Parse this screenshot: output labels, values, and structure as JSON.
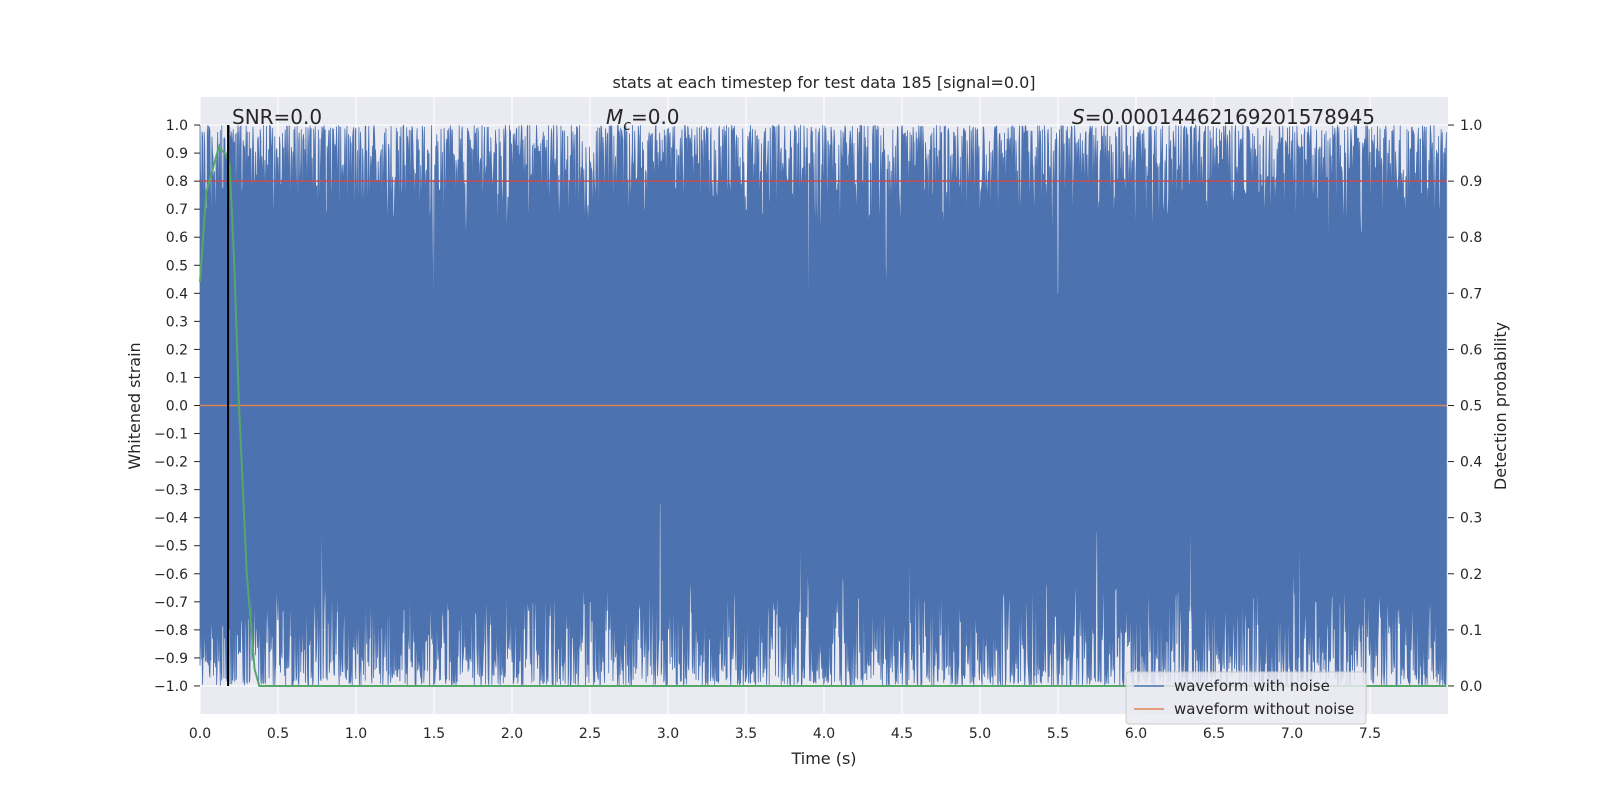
{
  "chart_data": {
    "type": "line",
    "title": "stats at each timestep for test data 185 [signal=0.0]",
    "xlabel": "Time (s)",
    "ylabel": "Whitened strain",
    "ylabel_right": "Detection probability",
    "xlim": [
      0.0,
      8.0
    ],
    "ylim": [
      -1.1,
      1.1
    ],
    "ylim_right": [
      -0.05,
      1.05
    ],
    "x_ticks": [
      "0.0",
      "0.5",
      "1.0",
      "1.5",
      "2.0",
      "2.5",
      "3.0",
      "3.5",
      "4.0",
      "4.5",
      "5.0",
      "5.5",
      "6.0",
      "6.5",
      "7.0",
      "7.5"
    ],
    "y_ticks": [
      "1.0",
      "0.9",
      "0.8",
      "0.7",
      "0.6",
      "0.5",
      "0.4",
      "0.3",
      "0.2",
      "0.1",
      "0.0",
      "−0.1",
      "−0.2",
      "−0.3",
      "−0.4",
      "−0.5",
      "−0.6",
      "−0.7",
      "−0.8",
      "−0.9",
      "−1.0"
    ],
    "y_ticks_right": [
      "1.0",
      "0.9",
      "0.8",
      "0.7",
      "0.6",
      "0.5",
      "0.4",
      "0.3",
      "0.2",
      "0.1",
      "0.0"
    ],
    "grid": true,
    "background": "#eaeaf2",
    "annotations": {
      "snr": "SNR=0.0",
      "mc_symbol": "M",
      "mc_sub": "c",
      "mc_value": "=0.0",
      "s_symbol": "S",
      "s_value": "=0.00014462169201578945"
    },
    "legend": {
      "placement": "lower-right",
      "entries": [
        {
          "name": "waveform with noise",
          "color": "#4c72b0"
        },
        {
          "name": "waveform without noise",
          "color": "#dd8452"
        }
      ]
    },
    "series": [
      {
        "name": "waveform with noise",
        "color": "#4c72b0",
        "description_kind": "dense noise filling -1 to 1",
        "x_range": [
          0.0,
          7.99
        ],
        "upper_typical": 0.85,
        "lower_typical": -0.85,
        "deep_dips": [
          {
            "x": 0.18,
            "y": 0.55
          },
          {
            "x": 1.5,
            "y": 0.2
          },
          {
            "x": 1.49,
            "y": 0.4
          },
          {
            "x": 3.9,
            "y": 0.23
          },
          {
            "x": 4.4,
            "y": 0.42
          },
          {
            "x": 5.5,
            "y": 0.4
          },
          {
            "x": 2.85,
            "y": 0.7
          },
          {
            "x": 6.7,
            "y": 0.75
          }
        ],
        "high_spikes": [
          {
            "x": 0.78,
            "y": -0.35
          },
          {
            "x": 2.95,
            "y": -0.35
          },
          {
            "x": 3.85,
            "y": -0.4
          },
          {
            "x": 6.35,
            "y": -0.33
          },
          {
            "x": 7.05,
            "y": -0.35
          },
          {
            "x": 4.55,
            "y": -0.5
          },
          {
            "x": 5.75,
            "y": -0.45
          }
        ]
      },
      {
        "name": "waveform without noise",
        "color": "#dd8452",
        "x": [
          0.0,
          7.99
        ],
        "y": [
          0.0,
          0.0
        ]
      },
      {
        "name": "",
        "axis": "right",
        "color": "#55a868",
        "x": [
          0.0,
          0.04,
          0.08,
          0.12,
          0.16,
          0.19,
          0.22,
          0.25,
          0.3,
          0.35,
          0.38,
          2.0,
          4.0,
          6.0,
          7.99
        ],
        "y": [
          0.72,
          0.88,
          0.92,
          0.96,
          0.95,
          0.93,
          0.75,
          0.5,
          0.2,
          0.03,
          0.0,
          0.0,
          0.0,
          0.0,
          0.0
        ]
      },
      {
        "name": "",
        "axis": "right",
        "color": "#c44e52",
        "x": [
          0.0,
          7.99
        ],
        "y": [
          0.9,
          0.9
        ]
      }
    ],
    "vertical_marker": {
      "x": 0.18,
      "color": "#000000"
    }
  }
}
